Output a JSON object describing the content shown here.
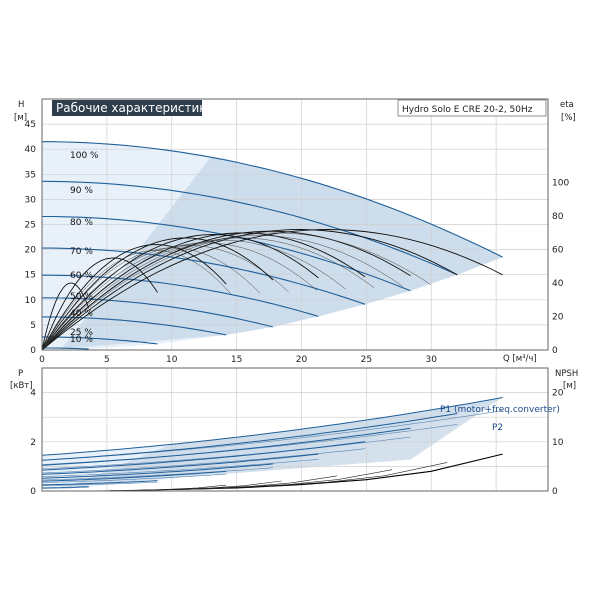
{
  "title": "Рабочие характеристики",
  "model": "Hydro Solo E CRE 20-2, 50Hz",
  "colors": {
    "title_bg": "#2f3e4c",
    "curve_blue": "#1f5f9a",
    "area_light": "#e8f1fa",
    "area_dark": "#c9d9e8",
    "grid": "#cfcfcf",
    "frame": "#666666",
    "eta": "#111111"
  },
  "axes": {
    "top_left_title": "H",
    "top_left_unit": "[м]",
    "top_right_title": "eta",
    "top_right_unit": "[%]",
    "bottom_left_title": "P",
    "bottom_left_unit": "[кВт]",
    "bottom_right_title": "NPSH",
    "bottom_right_unit": "[м]",
    "x_label": "Q [м³/ч]"
  },
  "ticks": {
    "x": [
      "0",
      "5",
      "10",
      "15",
      "20",
      "25",
      "30"
    ],
    "h": [
      "0",
      "5",
      "10",
      "15",
      "20",
      "25",
      "30",
      "35",
      "40",
      "45"
    ],
    "eta": [
      "0",
      "20",
      "40",
      "60",
      "80",
      "100"
    ],
    "p": [
      "0",
      "2",
      "4"
    ],
    "npsh": [
      "0",
      "10",
      "20"
    ]
  },
  "chart_data": [
    {
      "type": "line",
      "title": "Рабочие характеристики",
      "xlabel": "Q [м³/ч]",
      "ylabel": "H [м]",
      "y2label": "eta [%]",
      "xlim": [
        0,
        39
      ],
      "ylim": [
        0,
        50
      ],
      "y2lim": [
        0,
        150
      ],
      "speed_labels": [
        "100 %",
        "90 %",
        "80 %",
        "70 %",
        "60 %",
        "50 %",
        "40 %",
        "25 %",
        "10 %"
      ],
      "head_curves": [
        {
          "speed": 1.0,
          "shutoff_H": 41.5,
          "max_Q": 35.5,
          "end_H": 18.5
        },
        {
          "speed": 0.9,
          "shutoff_H": 33.6,
          "max_Q": 32.0,
          "end_H": 15.0
        },
        {
          "speed": 0.8,
          "shutoff_H": 26.6,
          "max_Q": 28.4,
          "end_H": 11.8
        },
        {
          "speed": 0.7,
          "shutoff_H": 20.3,
          "max_Q": 24.9,
          "end_H": 9.1
        },
        {
          "speed": 0.6,
          "shutoff_H": 14.9,
          "max_Q": 21.3,
          "end_H": 6.7
        },
        {
          "speed": 0.5,
          "shutoff_H": 10.4,
          "max_Q": 17.8,
          "end_H": 4.6
        },
        {
          "speed": 0.4,
          "shutoff_H": 6.6,
          "max_Q": 14.2,
          "end_H": 3.0
        },
        {
          "speed": 0.25,
          "shutoff_H": 2.6,
          "max_Q": 8.9,
          "end_H": 1.2
        },
        {
          "speed": 0.1,
          "shutoff_H": 0.4,
          "max_Q": 3.6,
          "end_H": 0.2
        }
      ],
      "eta_peak_percent": [
        72,
        72,
        71,
        70,
        69,
        67,
        63,
        55,
        40
      ]
    },
    {
      "type": "line",
      "xlabel": "Q [м³/ч]",
      "ylabel": "P [кВт]",
      "y2label": "NPSH [м]",
      "xlim": [
        0,
        39
      ],
      "ylim": [
        0,
        5
      ],
      "y2lim": [
        0,
        25
      ],
      "series_labels": [
        "P1 (motor+freq.converter)",
        "P2"
      ],
      "p1_curves": [
        {
          "speed": 1.0,
          "P0": 1.45,
          "Pend": 3.8
        },
        {
          "speed": 0.9,
          "P0": 1.25,
          "Pend": 3.15
        },
        {
          "speed": 0.8,
          "P0": 1.05,
          "Pend": 2.55
        },
        {
          "speed": 0.7,
          "P0": 0.85,
          "Pend": 2.0
        },
        {
          "speed": 0.6,
          "P0": 0.68,
          "Pend": 1.5
        },
        {
          "speed": 0.5,
          "P0": 0.52,
          "Pend": 1.1
        },
        {
          "speed": 0.4,
          "P0": 0.4,
          "Pend": 0.8
        },
        {
          "speed": 0.25,
          "P0": 0.25,
          "Pend": 0.42
        },
        {
          "speed": 0.1,
          "P0": 0.12,
          "Pend": 0.18
        }
      ],
      "npsh_curve": {
        "x": [
          10,
          15,
          20,
          25,
          30,
          35.5
        ],
        "y": [
          0.3,
          0.6,
          1.3,
          2.3,
          4.0,
          7.5
        ]
      }
    }
  ]
}
